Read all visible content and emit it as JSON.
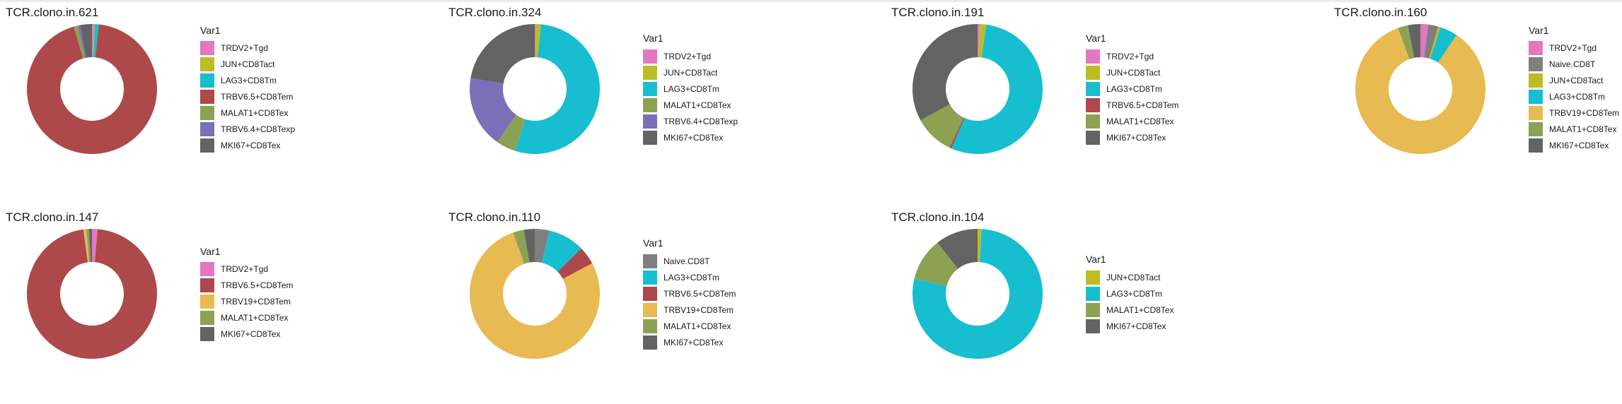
{
  "legend_title": "Var1",
  "colors": {
    "TRDV2+Tgd": "#E377C2",
    "JUN+CD8Tact": "#BCBD22",
    "LAG3+CD8Tm": "#17BECF",
    "TRBV6.5+CD8Tem": "#AD494A",
    "MALAT1+CD8Tex": "#8CA252",
    "TRBV6.4+CD8Texp": "#7B6FB8",
    "MKI67+CD8Tex": "#636363",
    "Naive.CD8T": "#7F7F7F",
    "TRBV19+CD8Tem": "#E7BA52"
  },
  "chart_data": [
    {
      "type": "pie",
      "title": "TCR.clono.in.621",
      "categories": [
        "TRDV2+Tgd",
        "JUN+CD8Tact",
        "LAG3+CD8Tm",
        "TRBV6.5+CD8Tem",
        "MALAT1+CD8Tex",
        "TRBV6.4+CD8Texp",
        "MKI67+CD8Tex"
      ],
      "values": [
        0.5,
        0.2,
        1.0,
        93.8,
        1.0,
        0.6,
        2.9
      ],
      "legend_position": "right"
    },
    {
      "type": "pie",
      "title": "TCR.clono.in.324",
      "categories": [
        "TRDV2+Tgd",
        "JUN+CD8Tact",
        "LAG3+CD8Tm",
        "MALAT1+CD8Tex",
        "TRBV6.4+CD8Texp",
        "MKI67+CD8Tex"
      ],
      "values": [
        0.3,
        1.2,
        53.4,
        4.9,
        17.9,
        22.3
      ],
      "legend_position": "right"
    },
    {
      "type": "pie",
      "title": "TCR.clono.in.191",
      "categories": [
        "TRDV2+Tgd",
        "JUN+CD8Tact",
        "LAG3+CD8Tm",
        "TRBV6.5+CD8Tem",
        "MALAT1+CD8Tex",
        "MKI67+CD8Tex"
      ],
      "values": [
        0.5,
        1.6,
        54.5,
        0.5,
        9.9,
        33.0
      ],
      "legend_position": "right"
    },
    {
      "type": "pie",
      "title": "TCR.clono.in.160",
      "categories": [
        "TRDV2+Tgd",
        "Naive.CD8T",
        "JUN+CD8Tact",
        "LAG3+CD8Tm",
        "TRBV19+CD8Tem",
        "MALAT1+CD8Tex",
        "MKI67+CD8Tex"
      ],
      "values": [
        1.9,
        2.5,
        0.6,
        4.4,
        85.0,
        2.5,
        3.1
      ],
      "legend_position": "right"
    },
    {
      "type": "pie",
      "title": "TCR.clono.in.147",
      "categories": [
        "TRDV2+Tgd",
        "TRBV6.5+CD8Tem",
        "TRBV19+CD8Tem",
        "MALAT1+CD8Tex",
        "MKI67+CD8Tex"
      ],
      "values": [
        1.4,
        96.6,
        0.7,
        0.7,
        0.7
      ],
      "legend_position": "right"
    },
    {
      "type": "pie",
      "title": "TCR.clono.in.110",
      "categories": [
        "Naive.CD8T",
        "LAG3+CD8Tm",
        "TRBV6.5+CD8Tem",
        "TRBV19+CD8Tem",
        "MALAT1+CD8Tex",
        "MKI67+CD8Tex"
      ],
      "values": [
        3.6,
        9.1,
        4.5,
        77.3,
        2.7,
        2.7
      ],
      "legend_position": "right"
    },
    {
      "type": "pie",
      "title": "TCR.clono.in.104",
      "categories": [
        "JUN+CD8Tact",
        "LAG3+CD8Tm",
        "MALAT1+CD8Tex",
        "MKI67+CD8Tex"
      ],
      "values": [
        1.0,
        77.9,
        10.6,
        10.6
      ],
      "legend_position": "right"
    }
  ]
}
